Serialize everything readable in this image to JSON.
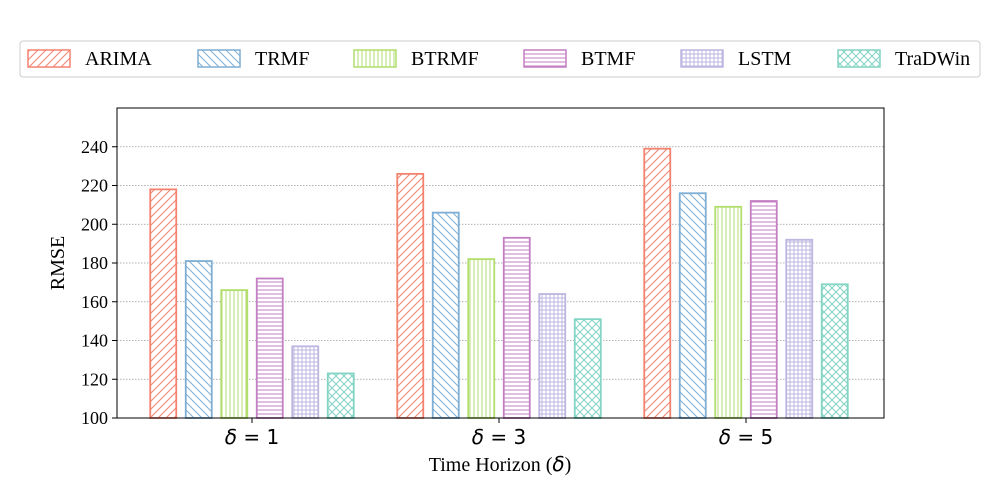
{
  "chart_data": {
    "type": "bar",
    "xlabel_prefix": "Time Horizon (",
    "xlabel_symbol": "δ",
    "xlabel_suffix": ")",
    "ylabel": "RMSE",
    "ylim": [
      100,
      260
    ],
    "yticks": [
      "100",
      "120",
      "140",
      "160",
      "180",
      "200",
      "220",
      "240"
    ],
    "grid": true,
    "legend_position": "top",
    "categories": [
      {
        "symbol": "δ",
        "rest": " = 1"
      },
      {
        "symbol": "δ",
        "rest": " = 3"
      },
      {
        "symbol": "δ",
        "rest": " = 5"
      }
    ],
    "series": [
      {
        "name": "ARIMA",
        "color": "#f4826e",
        "pattern": "diag-up",
        "values": [
          218,
          226,
          239
        ]
      },
      {
        "name": "TRMF",
        "color": "#7eaed3",
        "pattern": "diag-down",
        "values": [
          181,
          206,
          216
        ]
      },
      {
        "name": "BTRMF",
        "color": "#b1de6c",
        "pattern": "vertical",
        "values": [
          166,
          182,
          209
        ]
      },
      {
        "name": "BTMF",
        "color": "#c47fc4",
        "pattern": "horizontal",
        "values": [
          172,
          193,
          212
        ]
      },
      {
        "name": "LSTM",
        "color": "#bcb6e0",
        "pattern": "grid",
        "values": [
          137,
          164,
          192
        ]
      },
      {
        "name": "TraDWin",
        "color": "#82d4c4",
        "pattern": "cross",
        "values": [
          123,
          151,
          169
        ]
      }
    ]
  }
}
